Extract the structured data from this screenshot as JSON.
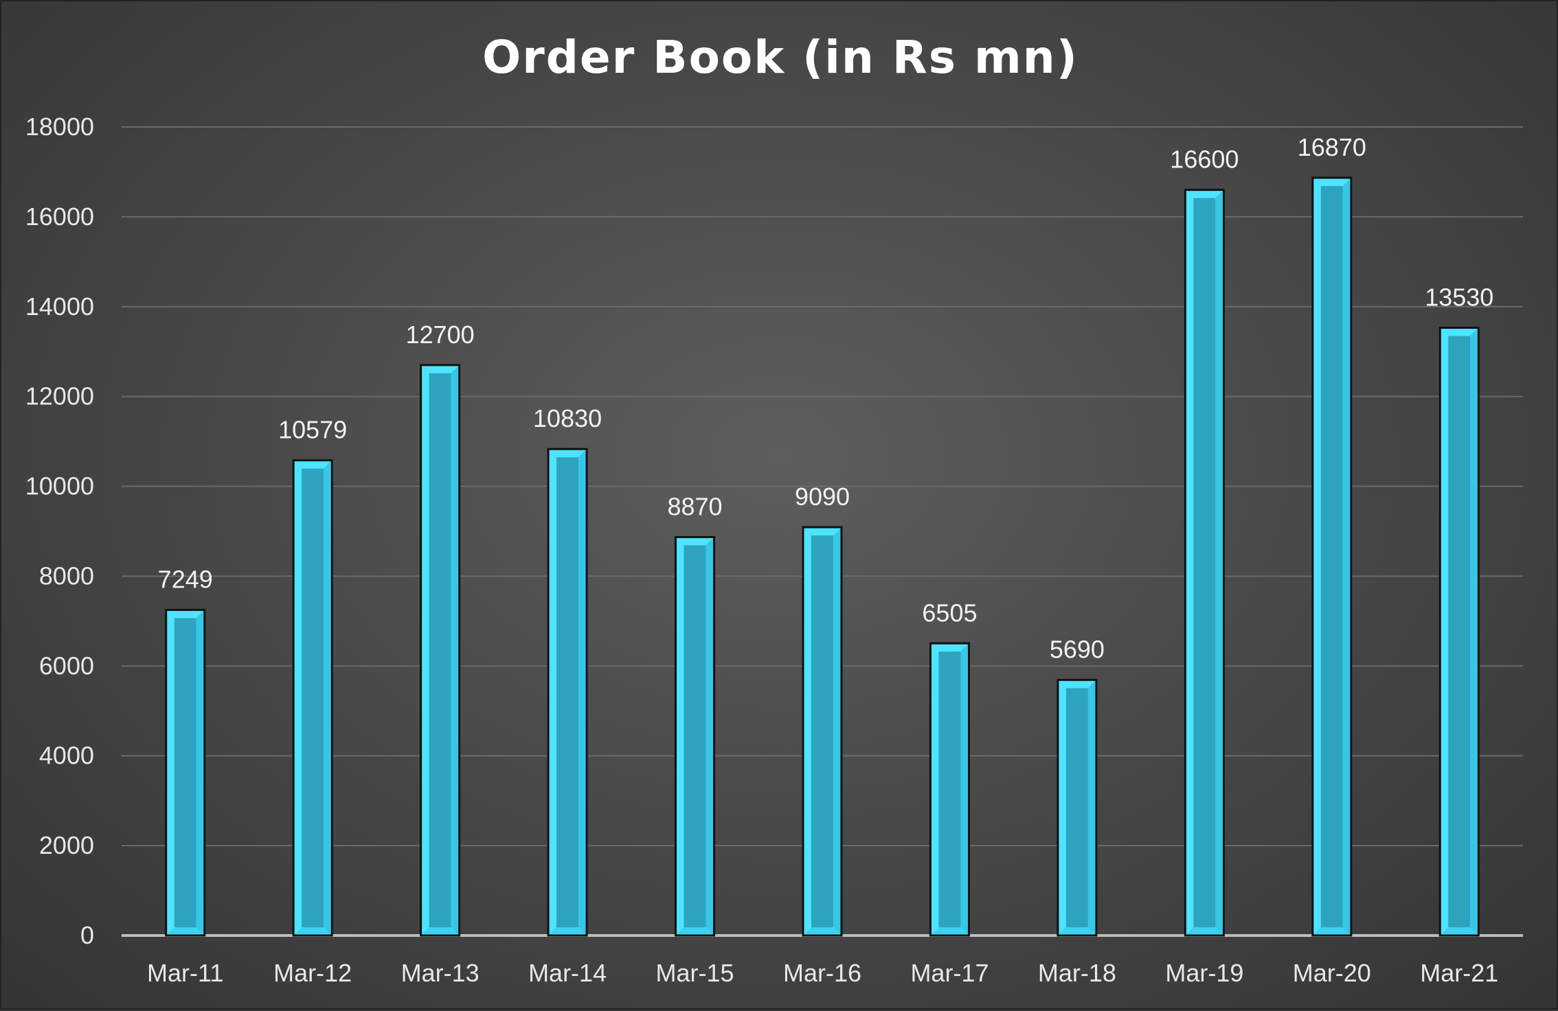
{
  "chart_data": {
    "type": "bar",
    "title": "Order Book (in Rs mn)",
    "xlabel": "",
    "ylabel": "",
    "categories": [
      "Mar-11",
      "Mar-12",
      "Mar-13",
      "Mar-14",
      "Mar-15",
      "Mar-16",
      "Mar-17",
      "Mar-18",
      "Mar-19",
      "Mar-20",
      "Mar-21"
    ],
    "values": [
      7249,
      10579,
      12700,
      10830,
      8870,
      9090,
      6505,
      5690,
      16600,
      16870,
      13530
    ],
    "ylim": [
      0,
      18000
    ],
    "yticks": [
      0,
      2000,
      4000,
      6000,
      8000,
      10000,
      12000,
      14000,
      16000,
      18000
    ],
    "grid": true,
    "legend": "none",
    "colors": {
      "bar_fill": "#2ea3c0",
      "bar_bevel": "#4de4ff",
      "bar_outline": "#111111",
      "background": "#4a4a4a",
      "gridline": "#6a6a6a",
      "axis": "#bdbdbd"
    }
  }
}
